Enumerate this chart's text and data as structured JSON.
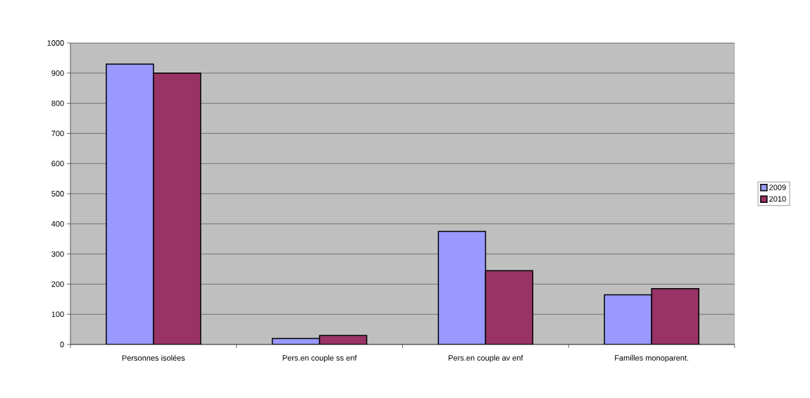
{
  "chart_data": {
    "type": "bar",
    "categories": [
      "Personnes isolées",
      "Pers.en couple ss enf",
      "Pers.en couple av enf",
      "Familles monoparent."
    ],
    "series": [
      {
        "name": "2009",
        "color": "#9999ff",
        "values": [
          930,
          20,
          375,
          165
        ]
      },
      {
        "name": "2010",
        "color": "#993366",
        "values": [
          900,
          30,
          245,
          185
        ]
      }
    ],
    "ylim": [
      0,
      1000
    ],
    "yticks": [
      0,
      100,
      200,
      300,
      400,
      500,
      600,
      700,
      800,
      900,
      1000
    ],
    "grid": "y",
    "legend": "right"
  }
}
